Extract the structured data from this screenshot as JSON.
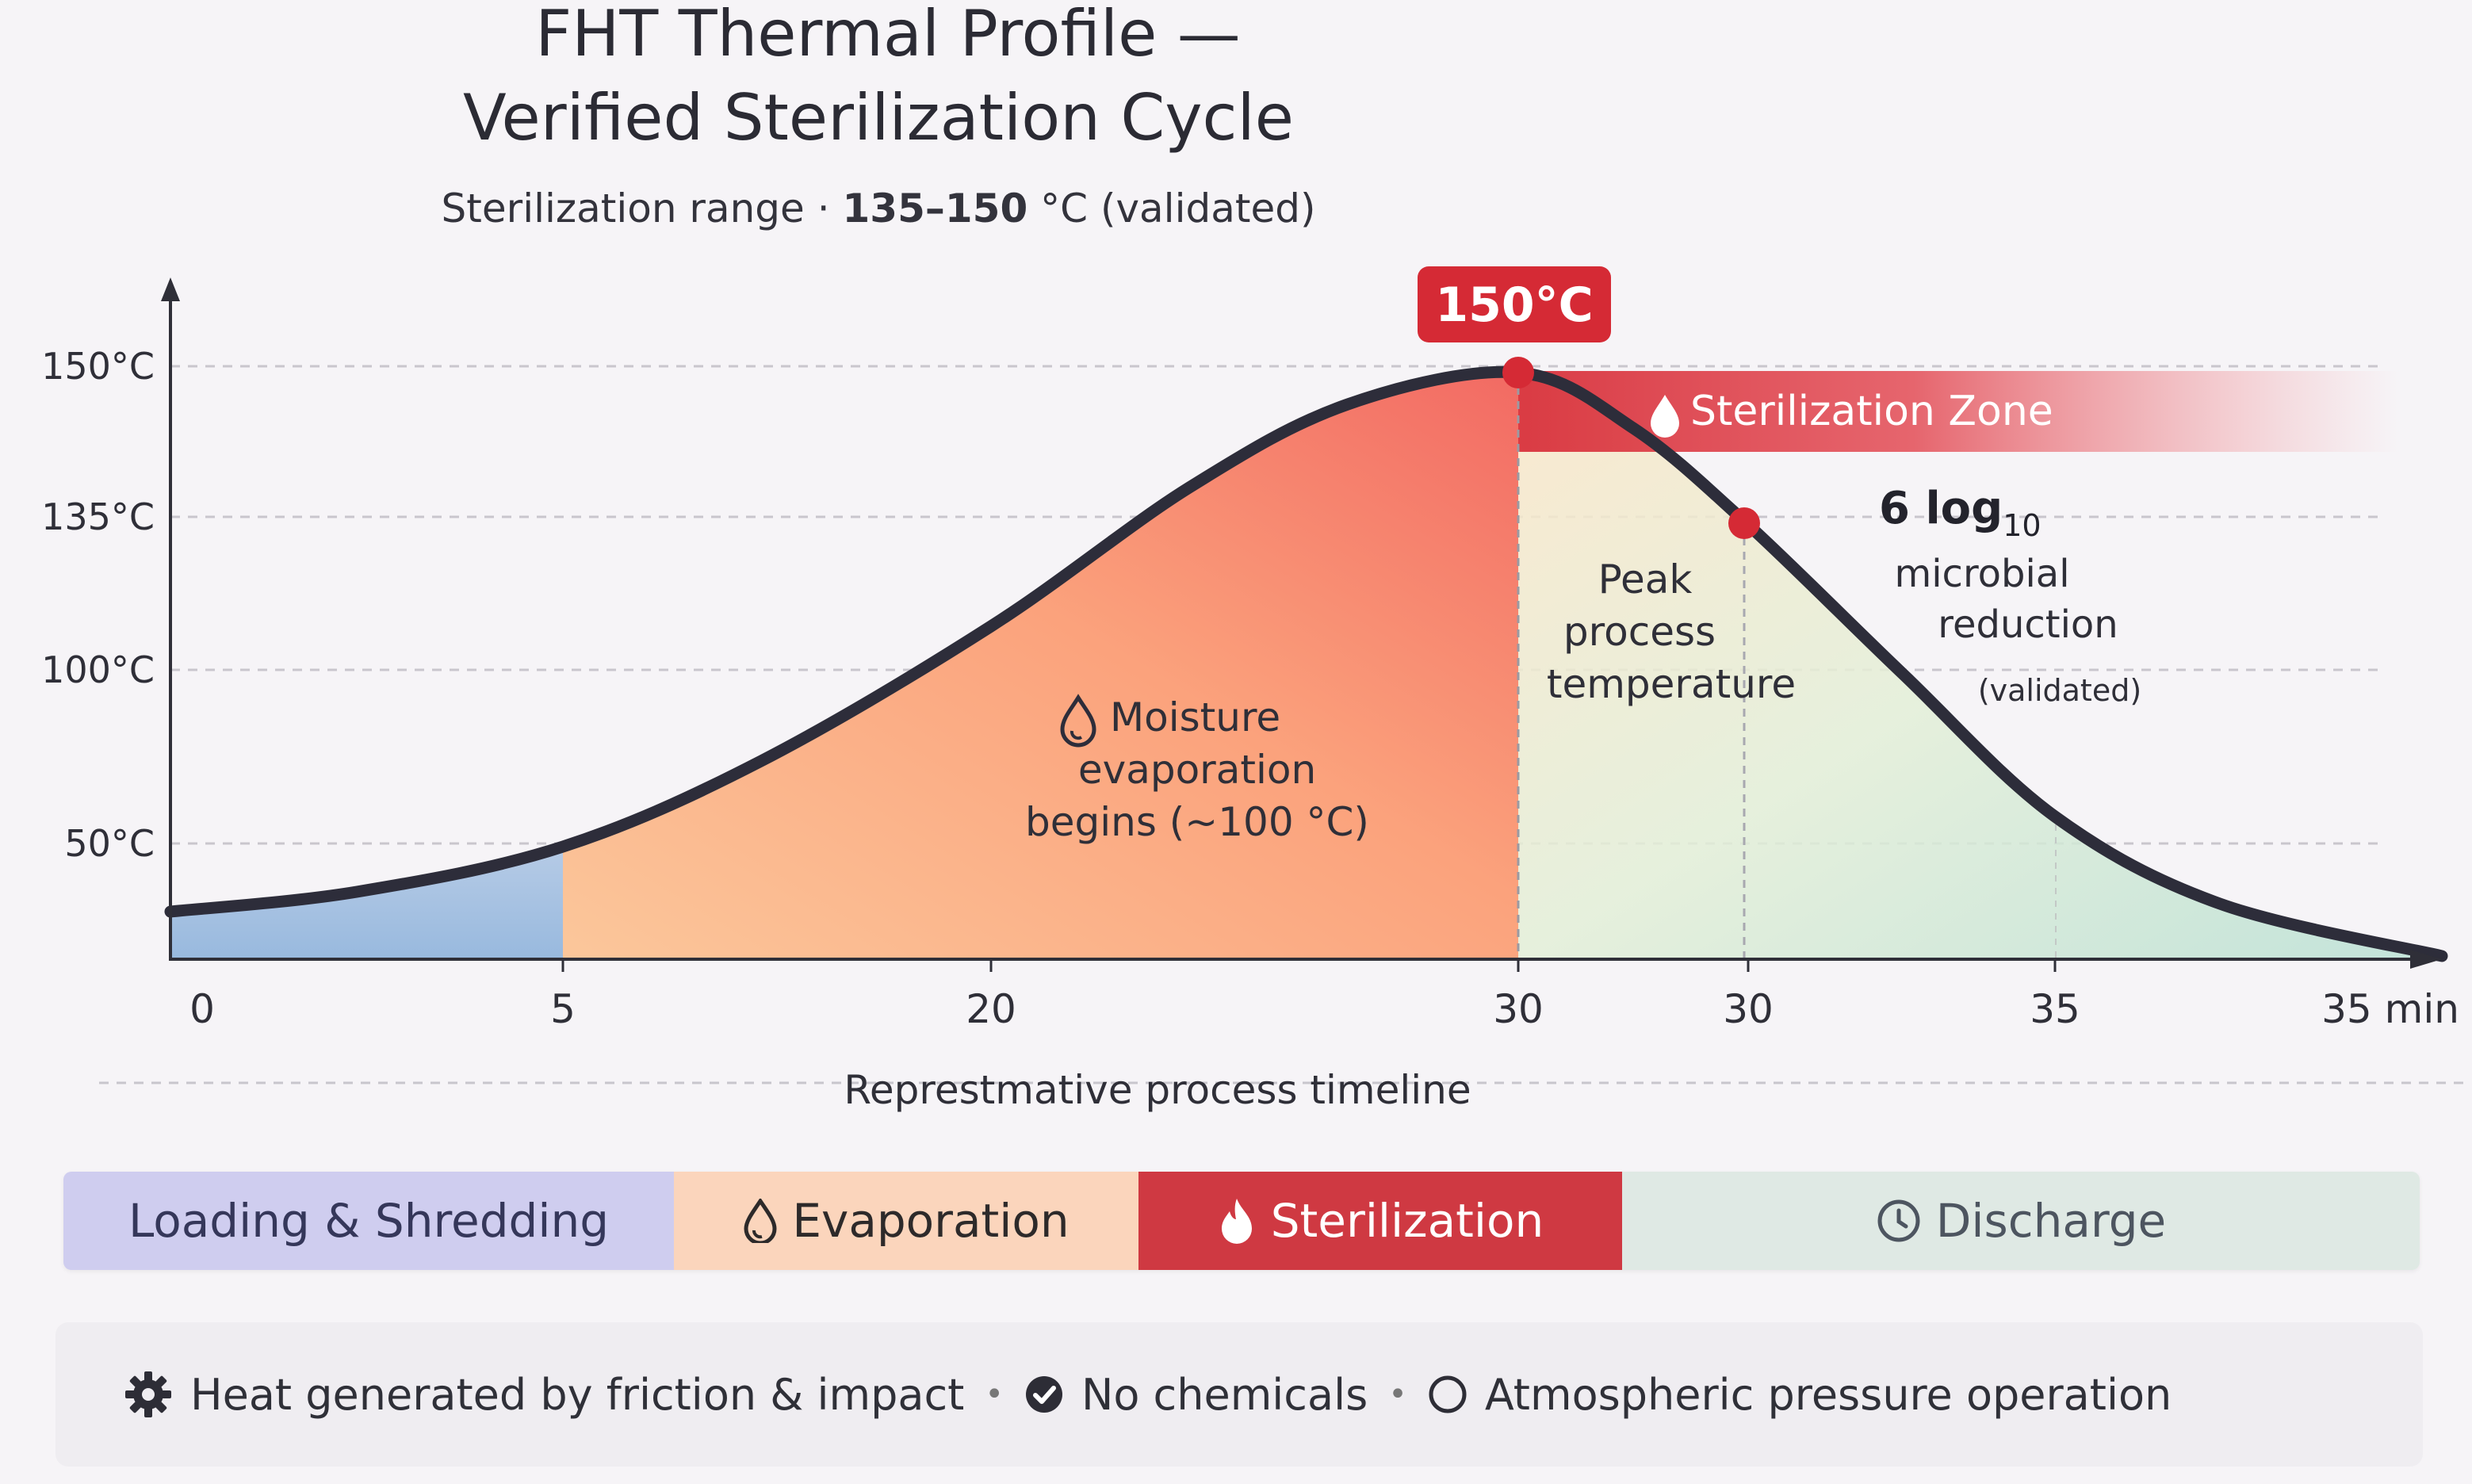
{
  "chart_data": {
    "type": "area",
    "title_line1": "FHT Thermal Profile —",
    "title_line2": "Verified Sterilization Cycle",
    "subtitle_prefix": "Sterilization range · ",
    "subtitle_range": "135–150",
    "subtitle_suffix": " °C (validated)",
    "xlabel": "Represtmative process timeline",
    "y_ticks": [
      {
        "value": 150,
        "label": "150°C"
      },
      {
        "value": 135,
        "label": "135°C"
      },
      {
        "value": 100,
        "label": "100°C"
      },
      {
        "value": 50,
        "label": "50°C"
      }
    ],
    "x_ticks": [
      "0",
      "5",
      "20",
      "30",
      "30",
      "35",
      "35 min"
    ],
    "curve": {
      "x": [
        0,
        5,
        20,
        30,
        30,
        35,
        35
      ],
      "y": [
        40,
        50,
        100,
        150,
        135,
        70,
        0
      ]
    },
    "peak_label": "150°C",
    "zone_label": "Sterilization Zone",
    "annotations": {
      "moisture": [
        "Moisture",
        "evaporation",
        "begins (~100 °C)"
      ],
      "peak": [
        "Peak",
        "process",
        "temperature"
      ],
      "log_main": "6 log",
      "log_sub": "10",
      "log_lines": [
        "microbial",
        "reduction"
      ],
      "log_note": "(validated)"
    },
    "colors": {
      "loading": "#a9c3e2",
      "evaporation": "#fbb98a",
      "sterilization": "#d63a43",
      "discharge": "#c9e6da",
      "curve": "#2d2d3a"
    }
  },
  "phases": [
    {
      "label": "Loading & Shredding",
      "icon": ""
    },
    {
      "label": "Evaporation",
      "icon": "droplet-icon"
    },
    {
      "label": "Sterilization",
      "icon": "flame-icon"
    },
    {
      "label": "Discharge",
      "icon": "clock-icon"
    }
  ],
  "footer": {
    "item1": "Heat generated by friction & impact",
    "item2": "No chemicals",
    "item3": "Atmospheric pressure operation",
    "separator": "•"
  }
}
